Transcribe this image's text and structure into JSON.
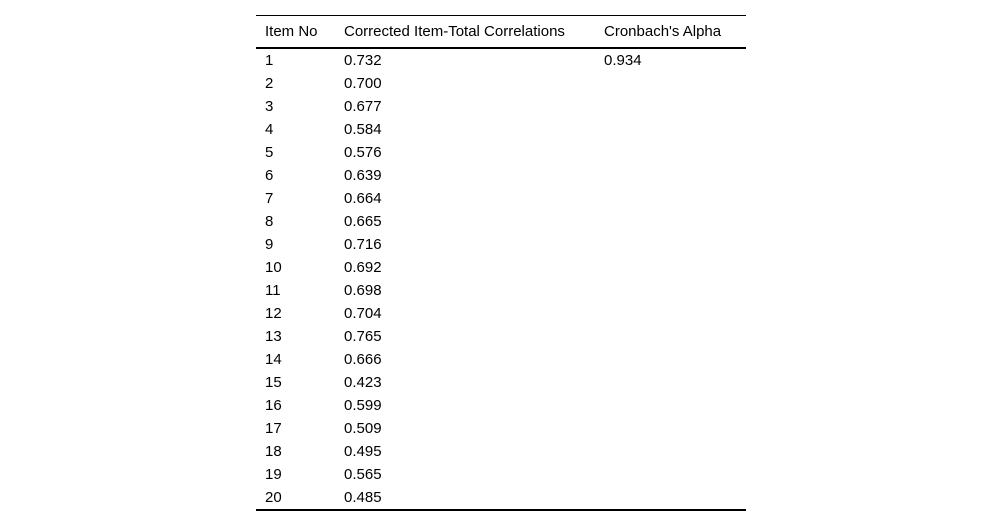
{
  "chart_data": {
    "type": "table",
    "title": "",
    "columns": [
      "Item No",
      "Corrected Item-Total Correlations",
      "Cronbach's Alpha"
    ],
    "rows": [
      [
        "1",
        "0.732",
        "0.934"
      ],
      [
        "2",
        "0.700",
        ""
      ],
      [
        "3",
        "0.677",
        ""
      ],
      [
        "4",
        "0.584",
        ""
      ],
      [
        "5",
        "0.576",
        ""
      ],
      [
        "6",
        "0.639",
        ""
      ],
      [
        "7",
        "0.664",
        ""
      ],
      [
        "8",
        "0.665",
        ""
      ],
      [
        "9",
        "0.716",
        ""
      ],
      [
        "10",
        "0.692",
        ""
      ],
      [
        "11",
        "0.698",
        ""
      ],
      [
        "12",
        "0.704",
        ""
      ],
      [
        "13",
        "0.765",
        ""
      ],
      [
        "14",
        "0.666",
        ""
      ],
      [
        "15",
        "0.423",
        ""
      ],
      [
        "16",
        "0.599",
        ""
      ],
      [
        "17",
        "0.509",
        ""
      ],
      [
        "18",
        "0.495",
        ""
      ],
      [
        "19",
        "0.565",
        ""
      ],
      [
        "20",
        "0.485",
        ""
      ]
    ],
    "cronbachs_alpha": 0.934,
    "layout": {
      "text_color": "#000000",
      "rule_color": "#000000",
      "background": "#ffffff"
    }
  }
}
